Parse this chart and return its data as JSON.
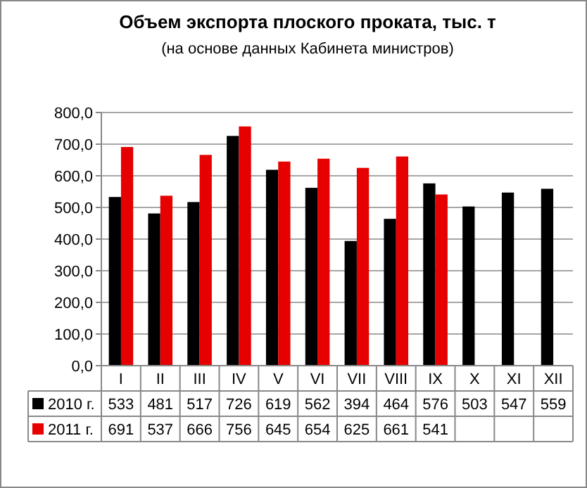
{
  "chart_data": {
    "type": "bar",
    "title": "Объем экспорта плоского проката, тыс. т",
    "subtitle": "(на основе данных Кабинета министров)",
    "categories": [
      "I",
      "II",
      "III",
      "IV",
      "V",
      "VI",
      "VII",
      "VIII",
      "IX",
      "X",
      "XI",
      "XII"
    ],
    "series": [
      {
        "name": "2010 г.",
        "color": "#000000",
        "values": [
          533,
          481,
          517,
          726,
          619,
          562,
          394,
          464,
          576,
          503,
          547,
          559
        ]
      },
      {
        "name": "2011 г.",
        "color": "#e60000",
        "values": [
          691,
          537,
          666,
          756,
          645,
          654,
          625,
          661,
          541,
          null,
          null,
          null
        ]
      }
    ],
    "ylim": [
      0,
      800
    ],
    "yticks": [
      {
        "value": 0,
        "label": "0,0"
      },
      {
        "value": 100,
        "label": "100,0"
      },
      {
        "value": 200,
        "label": "200,0"
      },
      {
        "value": 300,
        "label": "300,0"
      },
      {
        "value": 400,
        "label": "400,0"
      },
      {
        "value": 500,
        "label": "500,0"
      },
      {
        "value": 600,
        "label": "600,0"
      },
      {
        "value": 700,
        "label": "700,0"
      },
      {
        "value": 800,
        "label": "800,0"
      }
    ],
    "grid": "y",
    "legend": "bottom",
    "data_labels": true
  }
}
